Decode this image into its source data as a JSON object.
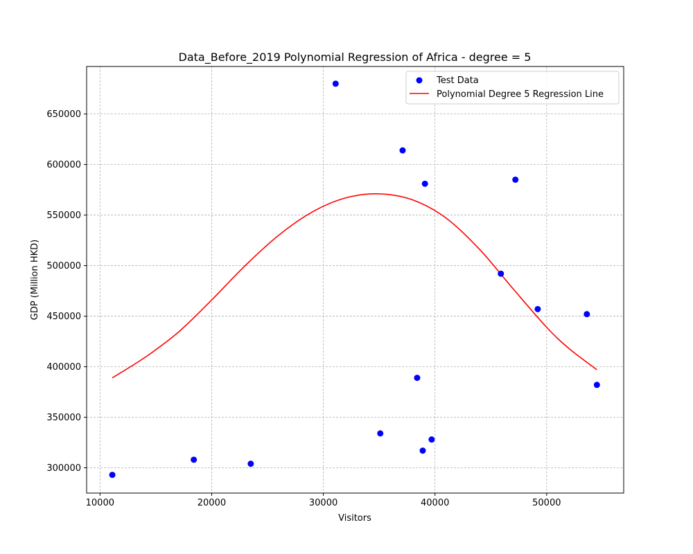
{
  "chart_data": {
    "type": "scatter",
    "title": "Data_Before_2019 Polynomial Regression of Africa - degree = 5",
    "xlabel": "Visitors",
    "ylabel": "GDP (Million HKD)",
    "xlim": [
      8800,
      56900
    ],
    "ylim": [
      275000,
      697000
    ],
    "xticks": [
      10000,
      20000,
      30000,
      40000,
      50000
    ],
    "xtick_labels": [
      "10000",
      "20000",
      "30000",
      "40000",
      "50000"
    ],
    "yticks": [
      300000,
      350000,
      400000,
      450000,
      500000,
      550000,
      600000,
      650000
    ],
    "ytick_labels": [
      "300000",
      "350000",
      "400000",
      "450000",
      "500000",
      "550000",
      "600000",
      "650000"
    ],
    "grid": true,
    "legend_position": "top-right",
    "series": [
      {
        "name": "Test Data",
        "kind": "scatter",
        "color": "#0000ff",
        "points": [
          {
            "x": 11100,
            "y": 293000
          },
          {
            "x": 18400,
            "y": 308000
          },
          {
            "x": 23500,
            "y": 304000
          },
          {
            "x": 31100,
            "y": 680000
          },
          {
            "x": 35100,
            "y": 334000
          },
          {
            "x": 37100,
            "y": 614000
          },
          {
            "x": 38400,
            "y": 389000
          },
          {
            "x": 38900,
            "y": 317000
          },
          {
            "x": 39100,
            "y": 581000
          },
          {
            "x": 39700,
            "y": 328000
          },
          {
            "x": 45900,
            "y": 492000
          },
          {
            "x": 47200,
            "y": 585000
          },
          {
            "x": 49200,
            "y": 457000
          },
          {
            "x": 53600,
            "y": 452000
          },
          {
            "x": 54500,
            "y": 382000
          }
        ]
      },
      {
        "name": "Polynomial Degree 5 Regression Line",
        "kind": "line",
        "color": "#ff0000",
        "points": [
          {
            "x": 11100,
            "y": 389000
          },
          {
            "x": 14000,
            "y": 409000
          },
          {
            "x": 17000,
            "y": 434000
          },
          {
            "x": 20000,
            "y": 466000
          },
          {
            "x": 23000,
            "y": 500000
          },
          {
            "x": 26000,
            "y": 530000
          },
          {
            "x": 29000,
            "y": 553000
          },
          {
            "x": 32000,
            "y": 567000
          },
          {
            "x": 35000,
            "y": 571000
          },
          {
            "x": 38000,
            "y": 565000
          },
          {
            "x": 41000,
            "y": 547000
          },
          {
            "x": 44000,
            "y": 516000
          },
          {
            "x": 47000,
            "y": 477000
          },
          {
            "x": 50000,
            "y": 439000
          },
          {
            "x": 52000,
            "y": 418000
          },
          {
            "x": 54500,
            "y": 397000
          }
        ]
      }
    ]
  }
}
